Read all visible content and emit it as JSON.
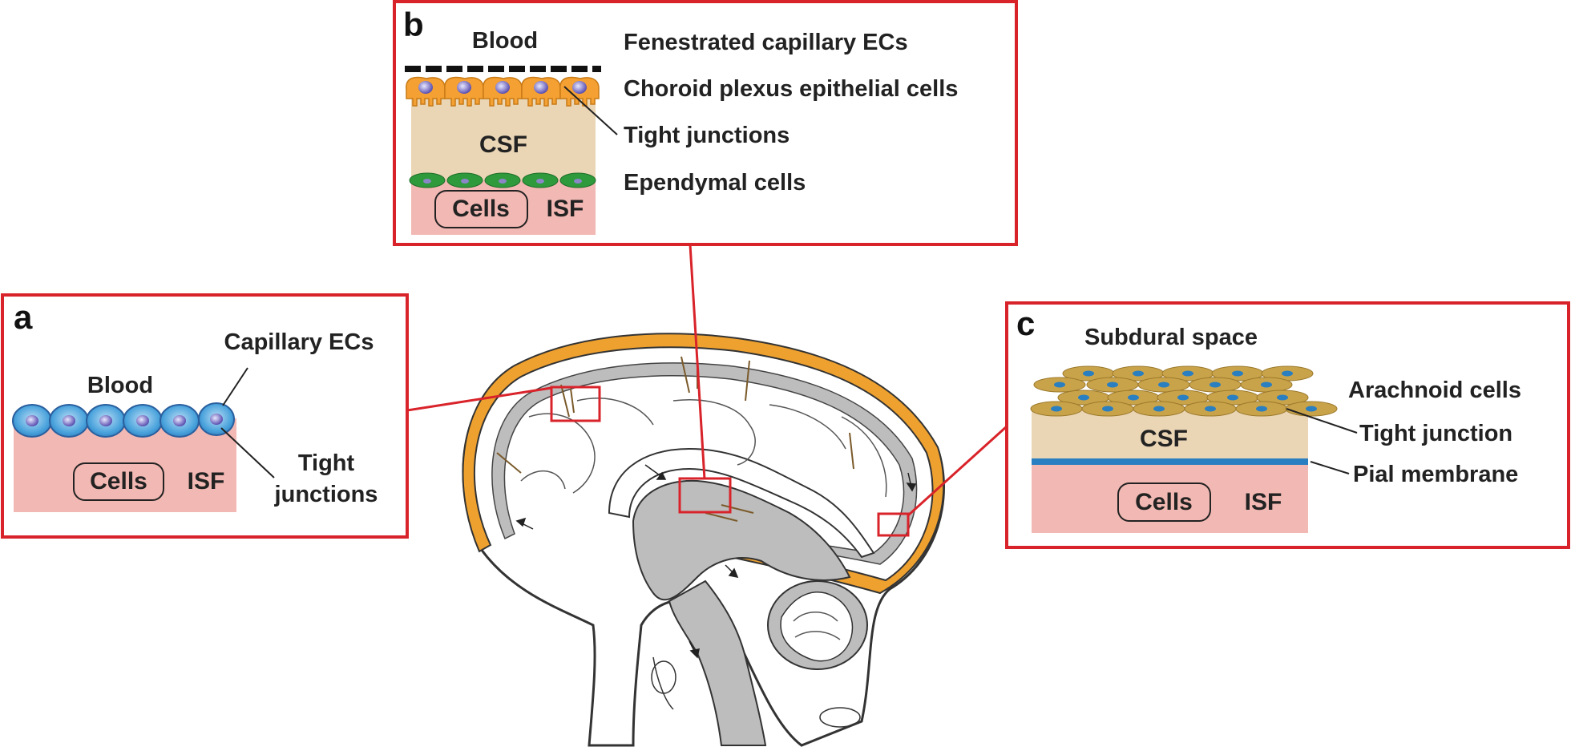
{
  "panels": {
    "a": {
      "letter": "a",
      "blood": "Blood",
      "capillary_ecs": "Capillary ECs",
      "tight_1": "Tight",
      "tight_2": "junctions",
      "cells": "Cells",
      "isf": "ISF"
    },
    "b": {
      "letter": "b",
      "blood": "Blood",
      "fenestrated": "Fenestrated capillary ECs",
      "choroid": "Choroid plexus epithelial cells",
      "tight": "Tight junctions",
      "ependymal": "Ependymal cells",
      "csf": "CSF",
      "cells": "Cells",
      "isf": "ISF"
    },
    "c": {
      "letter": "c",
      "subdural": "Subdural space",
      "arachnoid": "Arachnoid cells",
      "tight": "Tight junction",
      "pial": "Pial membrane",
      "csf": "CSF",
      "cells": "Cells",
      "isf": "ISF"
    }
  },
  "colors": {
    "frame": "#d9232a",
    "blood_cell": "#4aa3dc",
    "tissue_pink": "#f2b8b3",
    "csf_beige": "#ead5b5",
    "choroid_orange": "#f4a032",
    "ependymal_green": "#2e9a3c",
    "arachnoid": "#c9a34a",
    "pial_blue": "#2a7fc1",
    "brain_gray": "#b9b9b9",
    "meninges_orange": "#eea12f"
  }
}
